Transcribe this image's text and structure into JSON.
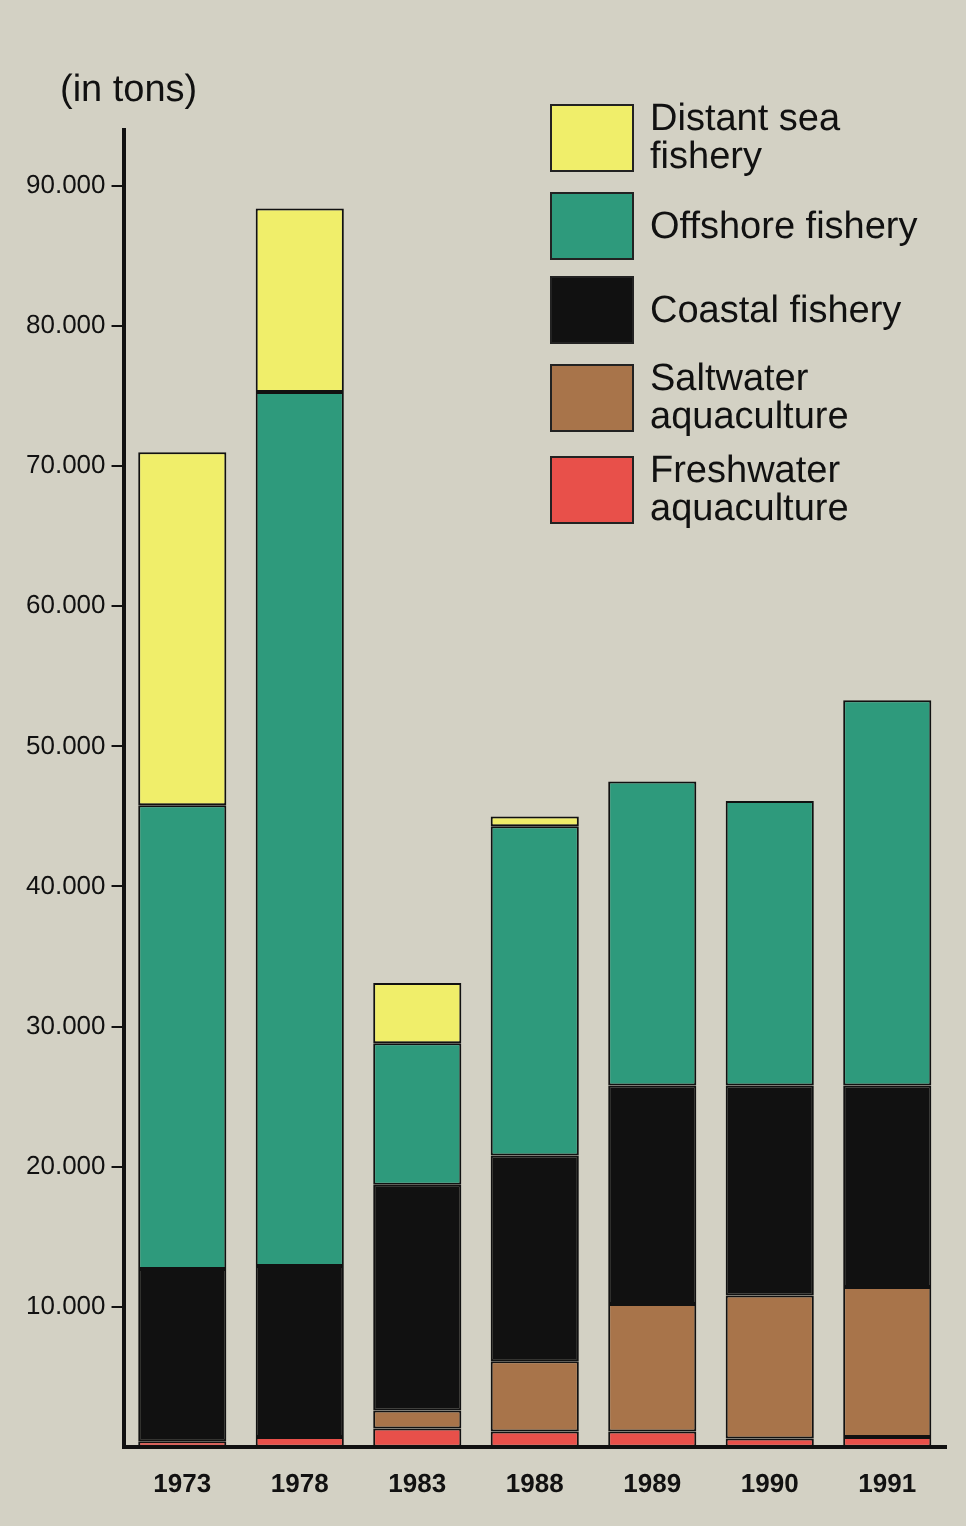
{
  "chart_data": {
    "type": "bar",
    "stacked": true,
    "ylabel": "(in tons)",
    "categories": [
      "1973",
      "1978",
      "1983",
      "1988",
      "1989",
      "1990",
      "1991"
    ],
    "series": [
      {
        "name": "Freshwater aquaculture",
        "color": "#e8504a",
        "values": [
          400,
          700,
          1300,
          1100,
          1100,
          600,
          700
        ]
      },
      {
        "name": "Saltwater aquaculture",
        "color": "#a8744a",
        "values": [
          0,
          0,
          1300,
          5000,
          9100,
          10200,
          10700
        ]
      },
      {
        "name": "Coastal fishery",
        "color": "#111111",
        "values": [
          12300,
          12200,
          16100,
          14700,
          15600,
          15000,
          14400
        ]
      },
      {
        "name": "Offshore fishery",
        "color": "#2e9a7c",
        "values": [
          33100,
          62400,
          10100,
          23500,
          21700,
          20300,
          27500
        ]
      },
      {
        "name": "Distant sea fishery",
        "color": "#f0ee6a",
        "values": [
          25200,
          13100,
          4300,
          700,
          0,
          0,
          0
        ]
      }
    ],
    "ylim": [
      0,
      94000
    ],
    "yticks": [
      {
        "value": 10000,
        "label": "10.000"
      },
      {
        "value": 20000,
        "label": "20.000"
      },
      {
        "value": 30000,
        "label": "30.000"
      },
      {
        "value": 40000,
        "label": "40.000"
      },
      {
        "value": 50000,
        "label": "50.000"
      },
      {
        "value": 60000,
        "label": "60.000"
      },
      {
        "value": 70000,
        "label": "70.000"
      },
      {
        "value": 80000,
        "label": "80.000"
      },
      {
        "value": 90000,
        "label": "90.000"
      }
    ],
    "grid": false,
    "legend": "top right"
  }
}
